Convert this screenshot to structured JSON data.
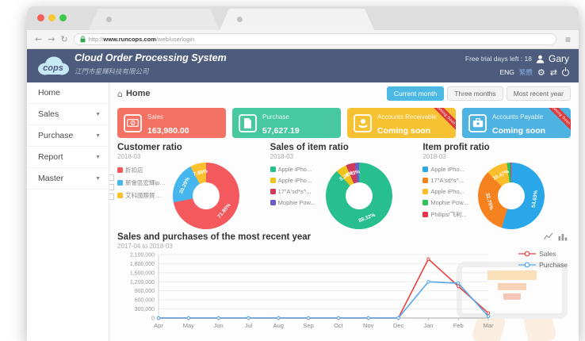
{
  "browser": {
    "url_prefix": "http://",
    "url_domain": "www.runcops.com",
    "url_path": "/web/userlogin"
  },
  "header": {
    "logo": "cops",
    "title": "Cloud Order Processing System",
    "subtitle": "江門市星輝科技有限公司",
    "trial_text": "Free trial days left : 18",
    "user": "Gary",
    "lang_active": "ENG",
    "lang_alt": "繁體",
    "bg_color": "#4d5c7d"
  },
  "sidebar": {
    "items": [
      {
        "label": "Home",
        "caret": false
      },
      {
        "label": "Sales",
        "caret": true
      },
      {
        "label": "Purchase",
        "caret": true
      },
      {
        "label": "Report",
        "caret": true
      },
      {
        "label": "Master",
        "caret": true
      }
    ]
  },
  "main": {
    "breadcrumb": "Home",
    "range_buttons": [
      {
        "label": "Current month",
        "active": true
      },
      {
        "label": "Three months",
        "active": false
      },
      {
        "label": "Most recent year",
        "active": false
      }
    ]
  },
  "cards": [
    {
      "label": "Sales",
      "value": "163,980.00",
      "color": "#f47264"
    },
    {
      "label": "Purchase",
      "value": "57,627.19",
      "color": "#47c89e"
    },
    {
      "label": "Accounts Receivable",
      "value": "Coming soon",
      "color": "#f6c233",
      "ribbon": "Coming Soon"
    },
    {
      "label": "Accounts Payable",
      "value": "Coming soon",
      "color": "#4fb3e1",
      "ribbon": "Coming Soon"
    }
  ],
  "chart_data": [
    {
      "type": "pie",
      "title": "Customer ratio",
      "subtitle": "2018-03",
      "labels": [
        "折扣店",
        "新會區宏輝iphon...",
        "艾科國際貿易公司"
      ],
      "values": [
        71.85,
        20.29,
        7.86
      ],
      "colors": [
        "#f4595d",
        "#45b6ee",
        "#fbc02d"
      ]
    },
    {
      "type": "pie",
      "title": "Sales of item ratio",
      "subtitle": "2018-03",
      "labels": [
        "Apple iPho...",
        "Apple iPho...",
        "17\"A'sd*s^...",
        "Mophie Pow..."
      ],
      "values": [
        88.32,
        5.2,
        4.43,
        2.05
      ],
      "colors": [
        "#26bf8d",
        "#eec31c",
        "#cf3a5b",
        "#6f5bc8"
      ]
    },
    {
      "type": "pie",
      "title": "Item profit ratio",
      "subtitle": "2018-03",
      "labels": [
        "Apple iPho...",
        "17\"A'sd*s^...",
        "Apple iPho...",
        "Mophie Pow...",
        "Philips/飞利..."
      ],
      "values": [
        54.63,
        32.75,
        10.47,
        1.65,
        0.5
      ],
      "colors": [
        "#2aa7e8",
        "#f5821f",
        "#fbbd2b",
        "#2fc25b",
        "#e8334a"
      ]
    },
    {
      "type": "line",
      "title": "Sales and purchases of the most recent year",
      "subtitle": "2017-04 to 2018-03",
      "categories": [
        "Apr",
        "May",
        "Jun",
        "Jul",
        "Aug",
        "Sep",
        "Oct",
        "Nov",
        "Dec",
        "Jan",
        "Feb",
        "Mar"
      ],
      "series": [
        {
          "name": "Sales",
          "color": "#e8433e",
          "values": [
            0,
            0,
            0,
            0,
            0,
            0,
            0,
            0,
            0,
            1950000,
            1050000,
            163980
          ]
        },
        {
          "name": "Purchase",
          "color": "#55a9ec",
          "values": [
            0,
            0,
            0,
            0,
            0,
            0,
            0,
            0,
            0,
            1200000,
            1150000,
            57627
          ]
        }
      ],
      "ylim": [
        0,
        2100000
      ],
      "ytick_step": 300000,
      "grid": true,
      "legend_position": "right"
    }
  ]
}
